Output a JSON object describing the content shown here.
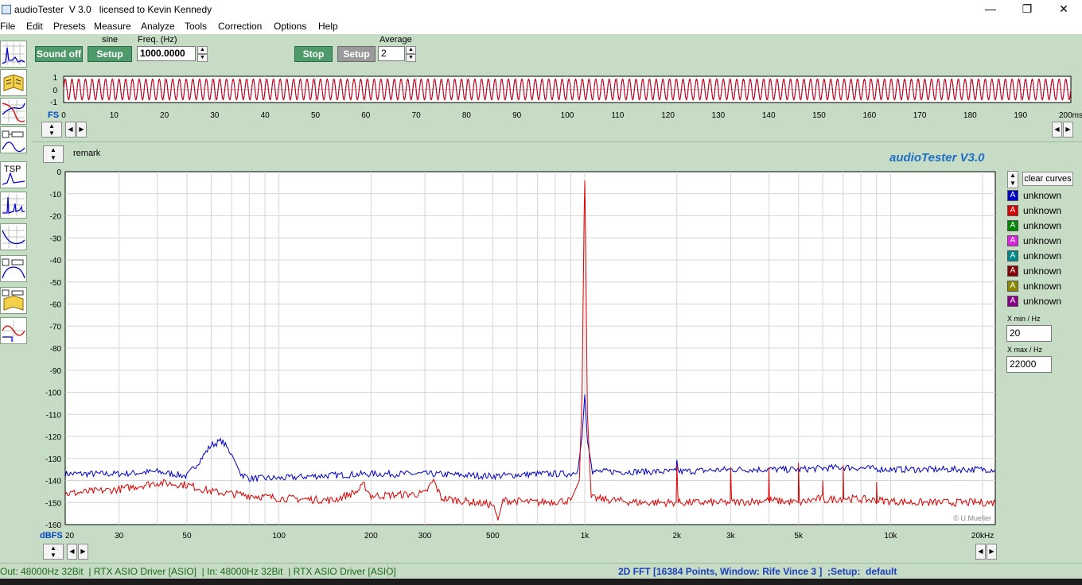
{
  "window": {
    "title": "audioTester  V 3.0   licensed to Kevin Kennedy",
    "minimize": "—",
    "maximize": "❐",
    "close": "✕"
  },
  "menu": [
    "File",
    "Edit",
    "Presets",
    "Measure",
    "Analyze",
    "Tools",
    "Correction",
    "Options",
    "Help"
  ],
  "tools": [
    {
      "name": "scope-tool",
      "icon": "oscilloscope-icon"
    },
    {
      "name": "book-tool",
      "icon": "book-icon"
    },
    {
      "name": "bode-tool",
      "icon": "bode-plot-icon"
    },
    {
      "name": "impedance-tool",
      "icon": "impedance-icon"
    },
    {
      "name": "tsp-tool",
      "icon": "tsp-icon",
      "label": "TSP"
    },
    {
      "name": "fft-tool",
      "icon": "spectrum-icon"
    },
    {
      "name": "response-tool",
      "icon": "response-curve-icon"
    },
    {
      "name": "filter-tool",
      "icon": "filter-icon"
    },
    {
      "name": "crossover-tool",
      "icon": "crossover-icon"
    },
    {
      "name": "phase-tool",
      "icon": "phase-icon"
    }
  ],
  "generator": {
    "sound_button": "Sound off",
    "waveform": "sine",
    "setup_button": "Setup",
    "freq_label": "Freq. (Hz)",
    "freq_value": "1000.0000"
  },
  "analyzer": {
    "stop_button": "Stop",
    "setup_button": "Setup",
    "average_label": "Average",
    "average_value": "2"
  },
  "scope": {
    "y_ticks": [
      "1",
      "0",
      "-1"
    ],
    "fs_label": "FS",
    "x_ticks": [
      "0",
      "10",
      "20",
      "30",
      "40",
      "50",
      "60",
      "70",
      "80",
      "90",
      "100",
      "110",
      "120",
      "130",
      "140",
      "150",
      "160",
      "170",
      "180",
      "190",
      "200ms"
    ],
    "x_range_ms": [
      0,
      200
    ],
    "signal_freq_hz": 1000,
    "colors": {
      "ch1": "#0000cc",
      "ch2": "#dd0000"
    }
  },
  "spectrum": {
    "remark": "remark",
    "brand": "audioTester  V3.0",
    "copyright": "© U.Mueller",
    "y_unit": "dBFS",
    "y_ticks": [
      "0",
      "-10",
      "-20",
      "-30",
      "-40",
      "-50",
      "-60",
      "-70",
      "-80",
      "-90",
      "-100",
      "-110",
      "-120",
      "-130",
      "-140",
      "-150",
      "-160"
    ],
    "x_ticks": [
      {
        "label": "20",
        "hz": 20
      },
      {
        "label": "30",
        "hz": 30
      },
      {
        "label": "50",
        "hz": 50
      },
      {
        "label": "100",
        "hz": 100
      },
      {
        "label": "200",
        "hz": 200
      },
      {
        "label": "300",
        "hz": 300
      },
      {
        "label": "500",
        "hz": 500
      },
      {
        "label": "1k",
        "hz": 1000
      },
      {
        "label": "2k",
        "hz": 2000
      },
      {
        "label": "3k",
        "hz": 3000
      },
      {
        "label": "5k",
        "hz": 5000
      },
      {
        "label": "10k",
        "hz": 10000
      },
      {
        "label": "20kHz",
        "hz": 20000
      }
    ]
  },
  "chart_data": {
    "type": "line",
    "xscale": "log",
    "xlim": [
      20,
      22000
    ],
    "ylim": [
      -160,
      0
    ],
    "grid": true,
    "series": [
      {
        "color": "#0000cc",
        "points": [
          [
            20,
            -137
          ],
          [
            30,
            -137
          ],
          [
            40,
            -136
          ],
          [
            50,
            -138
          ],
          [
            55,
            -131
          ],
          [
            60,
            -124
          ],
          [
            65,
            -122
          ],
          [
            70,
            -128
          ],
          [
            75,
            -137
          ],
          [
            80,
            -139
          ],
          [
            100,
            -139
          ],
          [
            130,
            -138
          ],
          [
            200,
            -137
          ],
          [
            300,
            -137
          ],
          [
            500,
            -138
          ],
          [
            700,
            -137
          ],
          [
            900,
            -137
          ],
          [
            950,
            -135
          ],
          [
            980,
            -120
          ],
          [
            1000,
            -101
          ],
          [
            1020,
            -122
          ],
          [
            1060,
            -136
          ],
          [
            1200,
            -136
          ],
          [
            1990,
            -136
          ],
          [
            2000,
            -130
          ],
          [
            2020,
            -136
          ],
          [
            3000,
            -135
          ],
          [
            5000,
            -135
          ],
          [
            7000,
            -134
          ],
          [
            10000,
            -135
          ],
          [
            15000,
            -135
          ],
          [
            22000,
            -135
          ]
        ]
      },
      {
        "color": "#dd0000",
        "points": [
          [
            20,
            -146
          ],
          [
            30,
            -144
          ],
          [
            40,
            -141
          ],
          [
            50,
            -142
          ],
          [
            60,
            -145
          ],
          [
            70,
            -146
          ],
          [
            100,
            -148
          ],
          [
            150,
            -149
          ],
          [
            180,
            -145
          ],
          [
            190,
            -142
          ],
          [
            200,
            -147
          ],
          [
            300,
            -146
          ],
          [
            320,
            -140
          ],
          [
            340,
            -148
          ],
          [
            500,
            -151
          ],
          [
            520,
            -158
          ],
          [
            540,
            -149
          ],
          [
            700,
            -150
          ],
          [
            900,
            -149
          ],
          [
            960,
            -140
          ],
          [
            980,
            -100
          ],
          [
            995,
            -20
          ],
          [
            1000,
            -4
          ],
          [
            1005,
            -25
          ],
          [
            1020,
            -110
          ],
          [
            1050,
            -148
          ],
          [
            1500,
            -150
          ],
          [
            1990,
            -150
          ],
          [
            2000,
            -133
          ],
          [
            2020,
            -150
          ],
          [
            2990,
            -150
          ],
          [
            3000,
            -134
          ],
          [
            3020,
            -150
          ],
          [
            3990,
            -149
          ],
          [
            4000,
            -134
          ],
          [
            4020,
            -149
          ],
          [
            4990,
            -150
          ],
          [
            5000,
            -132
          ],
          [
            5030,
            -150
          ],
          [
            5990,
            -148
          ],
          [
            6000,
            -140
          ],
          [
            6030,
            -149
          ],
          [
            6990,
            -148
          ],
          [
            7000,
            -133
          ],
          [
            7030,
            -148
          ],
          [
            8990,
            -149
          ],
          [
            9000,
            -141
          ],
          [
            9050,
            -149
          ],
          [
            12000,
            -150
          ],
          [
            22000,
            -150
          ]
        ]
      }
    ]
  },
  "legend": {
    "clear_button": "clear curves",
    "items": [
      {
        "glyph": "A",
        "label": "unknown",
        "color": "#0000cc"
      },
      {
        "glyph": "A",
        "label": "unknown",
        "color": "#dd0000"
      },
      {
        "glyph": "A",
        "label": "unknown",
        "color": "#008800"
      },
      {
        "glyph": "A",
        "label": "unknown",
        "color": "#e020e0"
      },
      {
        "glyph": "A",
        "label": "unknown",
        "color": "#008888"
      },
      {
        "glyph": "A",
        "label": "unknown",
        "color": "#880000"
      },
      {
        "glyph": "A",
        "label": "unknown",
        "color": "#888800"
      },
      {
        "glyph": "A",
        "label": "unknown",
        "color": "#880088"
      }
    ],
    "xmin_label": "X min / Hz",
    "xmin_value": "20",
    "xmax_label": "X max / Hz",
    "xmax_value": "22000"
  },
  "status": {
    "io": "Out: 48000Hz 32Bit  | RTX ASIO Driver [ASIO]  | In: 48000Hz 32Bit  | RTX ASIO Driver [ASIO]",
    "mode": "2D FFT [16384 Points, Window: Rife Vince 3 ]  ;Setup:  default"
  }
}
